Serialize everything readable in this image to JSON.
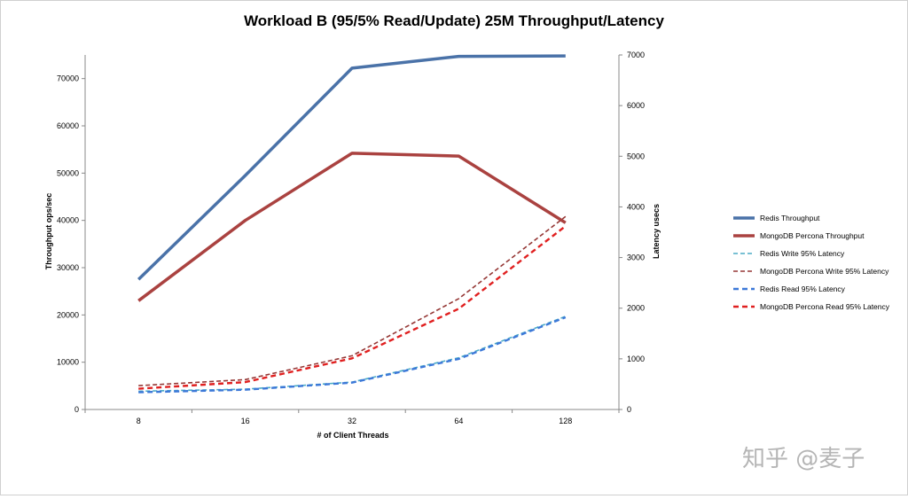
{
  "chart_data": {
    "type": "line",
    "title": "Workload B (95/5% Read/Update) 25M Throughput/Latency",
    "xlabel": "# of Client Threads",
    "ylabel_left": "Throughput ops/sec",
    "ylabel_right": "Latency usecs",
    "categories": [
      "8",
      "16",
      "32",
      "64",
      "128"
    ],
    "ylim_left": [
      0,
      75000
    ],
    "yticks_left": [
      0,
      10000,
      20000,
      30000,
      40000,
      50000,
      60000,
      70000
    ],
    "ylim_right": [
      0,
      7000
    ],
    "yticks_right": [
      0,
      1000,
      2000,
      3000,
      4000,
      5000,
      6000,
      7000
    ],
    "grid": false,
    "legend_position": "right",
    "series": [
      {
        "name": "Redis Throughput",
        "axis": "left",
        "style": "solid",
        "color": "#4a72a8",
        "values": [
          27500,
          49500,
          72200,
          74700,
          74800
        ]
      },
      {
        "name": "MongoDB Percona Throughput",
        "axis": "left",
        "style": "solid",
        "color": "#aa4240",
        "values": [
          23000,
          40000,
          54200,
          53600,
          39500
        ]
      },
      {
        "name": "Redis Write 95% Latency",
        "axis": "right",
        "style": "dashed-thin",
        "color": "#4bacc6",
        "values": [
          360,
          400,
          540,
          1020,
          1840
        ]
      },
      {
        "name": "MongoDB Percona Write 95% Latency",
        "axis": "right",
        "style": "dashed-thin",
        "color": "#953735",
        "values": [
          470,
          590,
          1060,
          2190,
          3810
        ]
      },
      {
        "name": "Redis Read 95% Latency",
        "axis": "right",
        "style": "dashed",
        "color": "#3c78d8",
        "values": [
          340,
          390,
          530,
          1000,
          1820
        ]
      },
      {
        "name": "MongoDB Percona Read 95% Latency",
        "axis": "right",
        "style": "dashed",
        "color": "#e02020",
        "values": [
          410,
          540,
          1010,
          1990,
          3620
        ]
      }
    ]
  },
  "watermark": "知乎 @麦子"
}
